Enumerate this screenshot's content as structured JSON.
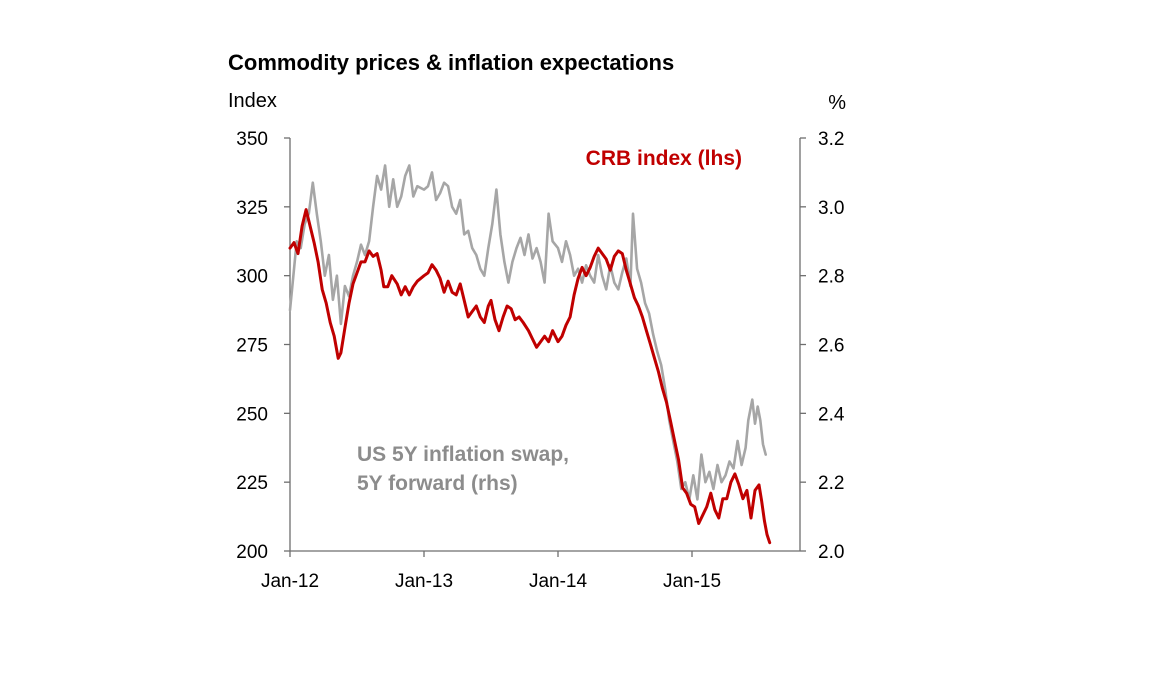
{
  "chart_data": {
    "type": "line",
    "title": "Commodity prices & inflation expectations",
    "ylabel_left": "Index",
    "ylabel_right": "%",
    "x_ticks": [
      "Jan-12",
      "Jan-13",
      "Jan-14",
      "Jan-15"
    ],
    "x_tick_values": [
      2012.0,
      2013.0,
      2014.0,
      2015.0
    ],
    "xlim": [
      2012.0,
      2015.8
    ],
    "ylim_left": [
      200,
      350
    ],
    "yticks_left": [
      "350",
      "325",
      "300",
      "275",
      "250",
      "225",
      "200"
    ],
    "ylim_right": [
      2.0,
      3.2
    ],
    "yticks_right": [
      "3.2",
      "3.0",
      "2.8",
      "2.6",
      "2.4",
      "2.2",
      "2.0"
    ],
    "grid": false,
    "colors": {
      "crb": "#c00000",
      "swap": "#a6a6a6",
      "axis": "#6e6e6e"
    },
    "series": [
      {
        "name": "CRB index (lhs)",
        "axis": "left",
        "color": "#c00000",
        "label_lines": [
          "CRB index (lhs)"
        ],
        "points": [
          [
            2012.0,
            310
          ],
          [
            2012.03,
            312
          ],
          [
            2012.06,
            308
          ],
          [
            2012.09,
            318
          ],
          [
            2012.12,
            324
          ],
          [
            2012.15,
            318
          ],
          [
            2012.18,
            312
          ],
          [
            2012.21,
            305
          ],
          [
            2012.24,
            295
          ],
          [
            2012.27,
            290
          ],
          [
            2012.3,
            283
          ],
          [
            2012.33,
            278
          ],
          [
            2012.36,
            270
          ],
          [
            2012.38,
            272
          ],
          [
            2012.41,
            281
          ],
          [
            2012.44,
            290
          ],
          [
            2012.47,
            297
          ],
          [
            2012.5,
            301
          ],
          [
            2012.53,
            305
          ],
          [
            2012.56,
            305
          ],
          [
            2012.59,
            309
          ],
          [
            2012.62,
            307
          ],
          [
            2012.65,
            308
          ],
          [
            2012.68,
            302
          ],
          [
            2012.7,
            296
          ],
          [
            2012.73,
            296
          ],
          [
            2012.76,
            300
          ],
          [
            2012.8,
            297
          ],
          [
            2012.83,
            293
          ],
          [
            2012.86,
            296
          ],
          [
            2012.89,
            293
          ],
          [
            2012.92,
            296
          ],
          [
            2012.95,
            298
          ],
          [
            2013.0,
            300
          ],
          [
            2013.03,
            301
          ],
          [
            2013.06,
            304
          ],
          [
            2013.09,
            302
          ],
          [
            2013.12,
            299
          ],
          [
            2013.15,
            294
          ],
          [
            2013.18,
            298
          ],
          [
            2013.21,
            294
          ],
          [
            2013.24,
            293
          ],
          [
            2013.27,
            297
          ],
          [
            2013.3,
            291
          ],
          [
            2013.33,
            285
          ],
          [
            2013.36,
            287
          ],
          [
            2013.39,
            289
          ],
          [
            2013.42,
            285
          ],
          [
            2013.45,
            283
          ],
          [
            2013.48,
            289
          ],
          [
            2013.5,
            291
          ],
          [
            2013.53,
            284
          ],
          [
            2013.56,
            280
          ],
          [
            2013.59,
            285
          ],
          [
            2013.62,
            289
          ],
          [
            2013.65,
            288
          ],
          [
            2013.68,
            284
          ],
          [
            2013.71,
            285
          ],
          [
            2013.74,
            283
          ],
          [
            2013.78,
            280
          ],
          [
            2013.81,
            277
          ],
          [
            2013.84,
            274
          ],
          [
            2013.87,
            276
          ],
          [
            2013.9,
            278
          ],
          [
            2013.93,
            276
          ],
          [
            2013.96,
            280
          ],
          [
            2014.0,
            276
          ],
          [
            2014.03,
            278
          ],
          [
            2014.06,
            282
          ],
          [
            2014.09,
            285
          ],
          [
            2014.12,
            293
          ],
          [
            2014.15,
            299
          ],
          [
            2014.18,
            303
          ],
          [
            2014.21,
            300
          ],
          [
            2014.24,
            303
          ],
          [
            2014.27,
            307
          ],
          [
            2014.3,
            310
          ],
          [
            2014.33,
            308
          ],
          [
            2014.36,
            306
          ],
          [
            2014.39,
            302
          ],
          [
            2014.42,
            307
          ],
          [
            2014.45,
            309
          ],
          [
            2014.48,
            308
          ],
          [
            2014.51,
            302
          ],
          [
            2014.54,
            297
          ],
          [
            2014.57,
            292
          ],
          [
            2014.6,
            289
          ],
          [
            2014.63,
            285
          ],
          [
            2014.66,
            280
          ],
          [
            2014.69,
            275
          ],
          [
            2014.72,
            270
          ],
          [
            2014.75,
            265
          ],
          [
            2014.78,
            259
          ],
          [
            2014.81,
            254
          ],
          [
            2014.84,
            247
          ],
          [
            2014.87,
            240
          ],
          [
            2014.9,
            233
          ],
          [
            2014.93,
            223
          ],
          [
            2014.96,
            221
          ],
          [
            2014.99,
            217
          ],
          [
            2015.02,
            216
          ],
          [
            2015.05,
            210
          ],
          [
            2015.08,
            213
          ],
          [
            2015.11,
            216
          ],
          [
            2015.14,
            221
          ],
          [
            2015.17,
            215
          ],
          [
            2015.2,
            212
          ],
          [
            2015.23,
            219
          ],
          [
            2015.26,
            219
          ],
          [
            2015.29,
            225
          ],
          [
            2015.32,
            228
          ],
          [
            2015.35,
            224
          ],
          [
            2015.38,
            219
          ],
          [
            2015.41,
            222
          ],
          [
            2015.44,
            212
          ],
          [
            2015.47,
            222
          ],
          [
            2015.5,
            224
          ],
          [
            2015.52,
            218
          ],
          [
            2015.54,
            211
          ],
          [
            2015.56,
            206
          ],
          [
            2015.58,
            203
          ]
        ]
      },
      {
        "name": "US 5Y inflation swap, 5Y forward (rhs)",
        "axis": "right",
        "color": "#a6a6a6",
        "label_lines": [
          "US 5Y inflation swap,",
          "5Y forward (rhs)"
        ],
        "points": [
          [
            2012.0,
            2.7
          ],
          [
            2012.02,
            2.78
          ],
          [
            2012.05,
            2.9
          ],
          [
            2012.08,
            2.88
          ],
          [
            2012.11,
            2.95
          ],
          [
            2012.14,
            2.98
          ],
          [
            2012.17,
            3.07
          ],
          [
            2012.2,
            2.98
          ],
          [
            2012.23,
            2.9
          ],
          [
            2012.26,
            2.8
          ],
          [
            2012.29,
            2.86
          ],
          [
            2012.32,
            2.73
          ],
          [
            2012.35,
            2.8
          ],
          [
            2012.38,
            2.66
          ],
          [
            2012.41,
            2.77
          ],
          [
            2012.44,
            2.74
          ],
          [
            2012.47,
            2.8
          ],
          [
            2012.5,
            2.84
          ],
          [
            2012.53,
            2.89
          ],
          [
            2012.56,
            2.86
          ],
          [
            2012.59,
            2.9
          ],
          [
            2012.62,
            3.0
          ],
          [
            2012.65,
            3.09
          ],
          [
            2012.68,
            3.05
          ],
          [
            2012.71,
            3.12
          ],
          [
            2012.74,
            3.0
          ],
          [
            2012.77,
            3.08
          ],
          [
            2012.8,
            3.0
          ],
          [
            2012.83,
            3.03
          ],
          [
            2012.86,
            3.09
          ],
          [
            2012.89,
            3.12
          ],
          [
            2012.92,
            3.03
          ],
          [
            2012.95,
            3.06
          ],
          [
            2013.0,
            3.05
          ],
          [
            2013.03,
            3.06
          ],
          [
            2013.06,
            3.1
          ],
          [
            2013.09,
            3.02
          ],
          [
            2013.12,
            3.04
          ],
          [
            2013.15,
            3.07
          ],
          [
            2013.18,
            3.06
          ],
          [
            2013.21,
            3.0
          ],
          [
            2013.24,
            2.98
          ],
          [
            2013.27,
            3.02
          ],
          [
            2013.3,
            2.92
          ],
          [
            2013.33,
            2.93
          ],
          [
            2013.36,
            2.88
          ],
          [
            2013.39,
            2.86
          ],
          [
            2013.42,
            2.82
          ],
          [
            2013.45,
            2.8
          ],
          [
            2013.48,
            2.88
          ],
          [
            2013.51,
            2.95
          ],
          [
            2013.54,
            3.05
          ],
          [
            2013.57,
            2.92
          ],
          [
            2013.6,
            2.84
          ],
          [
            2013.63,
            2.78
          ],
          [
            2013.66,
            2.84
          ],
          [
            2013.69,
            2.88
          ],
          [
            2013.72,
            2.91
          ],
          [
            2013.75,
            2.86
          ],
          [
            2013.78,
            2.92
          ],
          [
            2013.81,
            2.85
          ],
          [
            2013.84,
            2.88
          ],
          [
            2013.87,
            2.84
          ],
          [
            2013.9,
            2.78
          ],
          [
            2013.93,
            2.98
          ],
          [
            2013.96,
            2.9
          ],
          [
            2014.0,
            2.88
          ],
          [
            2014.03,
            2.84
          ],
          [
            2014.06,
            2.9
          ],
          [
            2014.09,
            2.86
          ],
          [
            2014.12,
            2.8
          ],
          [
            2014.15,
            2.82
          ],
          [
            2014.18,
            2.78
          ],
          [
            2014.21,
            2.83
          ],
          [
            2014.24,
            2.8
          ],
          [
            2014.27,
            2.78
          ],
          [
            2014.3,
            2.86
          ],
          [
            2014.33,
            2.8
          ],
          [
            2014.36,
            2.76
          ],
          [
            2014.39,
            2.83
          ],
          [
            2014.42,
            2.78
          ],
          [
            2014.45,
            2.76
          ],
          [
            2014.48,
            2.81
          ],
          [
            2014.51,
            2.85
          ],
          [
            2014.54,
            2.77
          ],
          [
            2014.56,
            2.98
          ],
          [
            2014.59,
            2.82
          ],
          [
            2014.62,
            2.78
          ],
          [
            2014.65,
            2.72
          ],
          [
            2014.68,
            2.69
          ],
          [
            2014.71,
            2.63
          ],
          [
            2014.74,
            2.58
          ],
          [
            2014.77,
            2.54
          ],
          [
            2014.8,
            2.47
          ],
          [
            2014.83,
            2.38
          ],
          [
            2014.86,
            2.32
          ],
          [
            2014.89,
            2.26
          ],
          [
            2014.92,
            2.18
          ],
          [
            2014.95,
            2.2
          ],
          [
            2014.98,
            2.15
          ],
          [
            2015.01,
            2.22
          ],
          [
            2015.04,
            2.15
          ],
          [
            2015.07,
            2.28
          ],
          [
            2015.1,
            2.2
          ],
          [
            2015.13,
            2.23
          ],
          [
            2015.16,
            2.18
          ],
          [
            2015.19,
            2.25
          ],
          [
            2015.22,
            2.2
          ],
          [
            2015.25,
            2.22
          ],
          [
            2015.28,
            2.26
          ],
          [
            2015.31,
            2.24
          ],
          [
            2015.34,
            2.32
          ],
          [
            2015.37,
            2.25
          ],
          [
            2015.4,
            2.3
          ],
          [
            2015.42,
            2.38
          ],
          [
            2015.45,
            2.44
          ],
          [
            2015.47,
            2.37
          ],
          [
            2015.49,
            2.42
          ],
          [
            2015.51,
            2.38
          ],
          [
            2015.53,
            2.31
          ],
          [
            2015.55,
            2.28
          ]
        ]
      }
    ]
  }
}
